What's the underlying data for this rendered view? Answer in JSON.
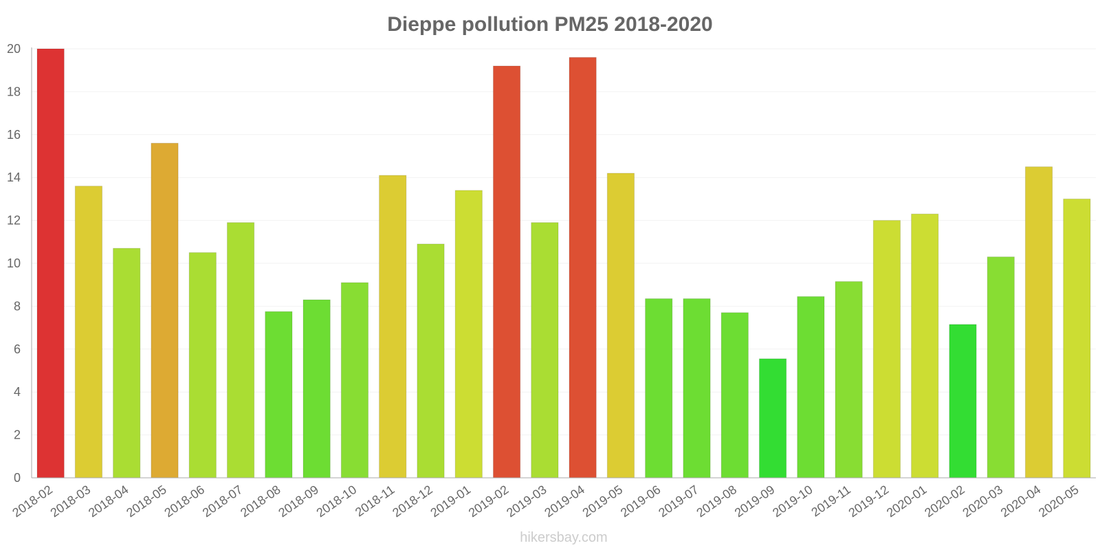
{
  "chart_data": {
    "type": "bar",
    "title": "Dieppe pollution PM25 2018-2020",
    "xlabel": "",
    "ylabel": "",
    "ylim": [
      0,
      20
    ],
    "yticks": [
      0,
      2,
      4,
      6,
      8,
      10,
      12,
      14,
      16,
      18,
      20
    ],
    "grid": true,
    "categories": [
      "2018-02",
      "2018-03",
      "2018-04",
      "2018-05",
      "2018-06",
      "2018-07",
      "2018-08",
      "2018-09",
      "2018-10",
      "2018-11",
      "2018-12",
      "2019-01",
      "2019-02",
      "2019-03",
      "2019-04",
      "2019-05",
      "2019-06",
      "2019-07",
      "2019-08",
      "2019-09",
      "2019-10",
      "2019-11",
      "2019-12",
      "2020-01",
      "2020-02",
      "2020-03",
      "2020-04",
      "2020-05"
    ],
    "values": [
      20,
      13.6,
      10.7,
      15.6,
      10.5,
      11.9,
      7.75,
      8.3,
      9.1,
      14.1,
      10.9,
      13.4,
      19.2,
      11.9,
      19.6,
      14.2,
      8.35,
      8.35,
      7.7,
      5.55,
      8.45,
      9.15,
      12,
      12.3,
      7.15,
      10.3,
      14.5,
      13
    ],
    "colors": [
      "#dd3333",
      "#dccc33",
      "#aadd33",
      "#ddaa33",
      "#aadd33",
      "#aadd33",
      "#6ddd33",
      "#6ddd33",
      "#88dd33",
      "#dccc33",
      "#aadd33",
      "#ccdd33",
      "#dd5033",
      "#aadd33",
      "#dd5033",
      "#dccc33",
      "#6ddd33",
      "#6ddd33",
      "#6ddd33",
      "#33dd33",
      "#6ddd33",
      "#88dd33",
      "#ccdd33",
      "#ccdd33",
      "#33dd33",
      "#88dd33",
      "#dccc33",
      "#ccdd33"
    ]
  },
  "watermark": "hikersbay.com"
}
